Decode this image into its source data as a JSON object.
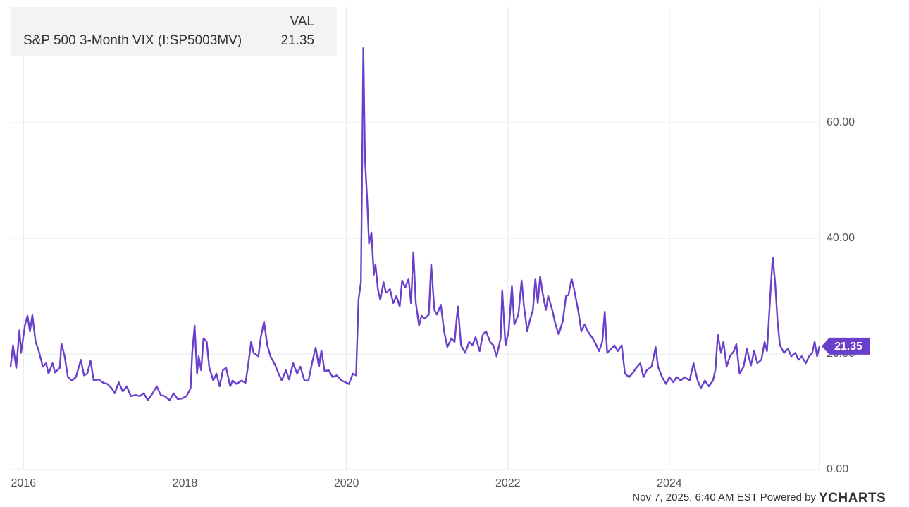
{
  "chart_data": {
    "type": "line",
    "legend_header": "VAL",
    "source": "Nov 7, 2025, 6:40 AM EST Powered by",
    "logo": "YCHARTS",
    "xlim": [
      2015.84,
      2025.86
    ],
    "xticks": [
      2016,
      2018,
      2020,
      2022,
      2024
    ],
    "ylim": [
      0,
      80
    ],
    "yticks": [
      {
        "value": 0,
        "label": "0.00"
      },
      {
        "value": 20,
        "label": "20.00"
      },
      {
        "value": 40,
        "label": "40.00"
      },
      {
        "value": 60,
        "label": "60.00"
      }
    ],
    "grid": true,
    "x": [
      2015.84,
      2015.87,
      2015.91,
      2015.95,
      2015.97,
      2016.02,
      2016.05,
      2016.08,
      2016.11,
      2016.15,
      2016.19,
      2016.24,
      2016.28,
      2016.31,
      2016.36,
      2016.39,
      2016.45,
      2016.47,
      2016.51,
      2016.55,
      2016.6,
      2016.65,
      2016.71,
      2016.75,
      2016.79,
      2016.83,
      2016.87,
      2016.93,
      2016.99,
      2017.04,
      2017.09,
      2017.13,
      2017.18,
      2017.23,
      2017.28,
      2017.33,
      2017.39,
      2017.44,
      2017.49,
      2017.54,
      2017.6,
      2017.65,
      2017.7,
      2017.75,
      2017.81,
      2017.86,
      2017.91,
      2017.96,
      2018.02,
      2018.07,
      2018.09,
      2018.12,
      2018.15,
      2018.17,
      2018.2,
      2018.23,
      2018.27,
      2018.3,
      2018.35,
      2018.39,
      2018.43,
      2018.47,
      2018.51,
      2018.56,
      2018.59,
      2018.64,
      2018.7,
      2018.75,
      2018.78,
      2018.82,
      2018.85,
      2018.91,
      2018.94,
      2018.98,
      2019.02,
      2019.06,
      2019.12,
      2019.16,
      2019.2,
      2019.25,
      2019.29,
      2019.34,
      2019.39,
      2019.43,
      2019.48,
      2019.53,
      2019.58,
      2019.62,
      2019.66,
      2019.69,
      2019.73,
      2019.78,
      2019.83,
      2019.88,
      2019.94,
      2019.99,
      2020.03,
      2020.08,
      2020.12,
      2020.15,
      2020.18,
      2020.21,
      2020.23,
      2020.26,
      2020.28,
      2020.31,
      2020.34,
      2020.36,
      2020.39,
      2020.42,
      2020.46,
      2020.49,
      2020.54,
      2020.58,
      2020.62,
      2020.66,
      2020.69,
      2020.73,
      2020.77,
      2020.8,
      2020.83,
      2020.86,
      2020.9,
      2020.93,
      2020.97,
      2021.02,
      2021.05,
      2021.09,
      2021.12,
      2021.17,
      2021.21,
      2021.25,
      2021.3,
      2021.34,
      2021.38,
      2021.42,
      2021.47,
      2021.52,
      2021.56,
      2021.6,
      2021.65,
      2021.69,
      2021.73,
      2021.78,
      2021.82,
      2021.86,
      2021.91,
      2021.93,
      2021.97,
      2022.01,
      2022.05,
      2022.08,
      2022.13,
      2022.17,
      2022.2,
      2022.24,
      2022.27,
      2022.31,
      2022.34,
      2022.37,
      2022.4,
      2022.43,
      2022.47,
      2022.5,
      2022.55,
      2022.59,
      2022.63,
      2022.68,
      2022.72,
      2022.75,
      2022.79,
      2022.82,
      2022.87,
      2022.91,
      2022.95,
      2022.99,
      2023.04,
      2023.09,
      2023.13,
      2023.17,
      2023.2,
      2023.23,
      2023.28,
      2023.32,
      2023.36,
      2023.41,
      2023.45,
      2023.5,
      2023.54,
      2023.59,
      2023.64,
      2023.68,
      2023.72,
      2023.78,
      2023.83,
      2023.86,
      2023.91,
      2023.96,
      2024.0,
      2024.05,
      2024.09,
      2024.14,
      2024.19,
      2024.25,
      2024.3,
      2024.35,
      2024.39,
      2024.44,
      2024.49,
      2024.54,
      2024.57,
      2024.6,
      2024.64,
      2024.67,
      2024.71,
      2024.75,
      2024.8,
      2024.83,
      2024.87,
      2024.92,
      2024.96,
      2025.01,
      2025.05,
      2025.09,
      2025.14,
      2025.18,
      2025.21,
      2025.25,
      2025.28,
      2025.31,
      2025.34,
      2025.37,
      2025.42,
      2025.47,
      2025.51,
      2025.56,
      2025.6,
      2025.64,
      2025.69,
      2025.73,
      2025.77,
      2025.8,
      2025.83,
      2025.86
    ],
    "series": [
      {
        "name": "S&P 500 3-Month VIX (I:SP5003MV)",
        "color": "#6a3fcc",
        "values": [
          17.8,
          21.5,
          17.6,
          24.1,
          20.2,
          25.1,
          26.6,
          23.9,
          26.7,
          22.1,
          20.5,
          17.8,
          18.4,
          16.6,
          18.4,
          16.8,
          17.6,
          21.8,
          19.6,
          16.0,
          15.4,
          16.0,
          19.0,
          16.3,
          16.6,
          18.8,
          15.4,
          15.6,
          15.0,
          14.8,
          14.1,
          13.2,
          15.1,
          13.5,
          14.4,
          12.7,
          12.9,
          12.7,
          13.2,
          12.0,
          13.2,
          14.4,
          12.9,
          12.7,
          12.0,
          13.2,
          12.2,
          12.3,
          12.7,
          14.1,
          20.2,
          24.9,
          16.6,
          19.6,
          17.2,
          22.7,
          22.1,
          17.8,
          15.4,
          16.6,
          14.4,
          17.2,
          17.6,
          14.4,
          15.4,
          14.8,
          15.4,
          15.0,
          17.8,
          22.1,
          20.2,
          19.6,
          22.9,
          25.6,
          21.5,
          19.6,
          18.0,
          16.6,
          15.4,
          17.2,
          15.6,
          18.4,
          16.6,
          17.8,
          15.4,
          15.4,
          18.8,
          21.1,
          17.8,
          20.6,
          17.0,
          17.2,
          16.0,
          16.3,
          15.4,
          15.1,
          14.8,
          16.6,
          16.3,
          29.4,
          32.4,
          72.9,
          53.8,
          45.9,
          39.1,
          41.0,
          33.7,
          35.5,
          31.2,
          29.4,
          32.4,
          30.6,
          31.2,
          28.8,
          30.0,
          28.2,
          32.7,
          31.5,
          33.0,
          28.8,
          37.6,
          28.8,
          24.9,
          26.6,
          26.1,
          26.8,
          35.5,
          27.6,
          26.8,
          28.5,
          23.9,
          21.2,
          22.7,
          22.1,
          28.2,
          21.5,
          20.2,
          22.1,
          21.5,
          22.9,
          20.5,
          23.4,
          23.9,
          22.1,
          21.5,
          19.6,
          22.7,
          31.0,
          21.5,
          23.9,
          31.8,
          25.1,
          26.8,
          32.7,
          28.2,
          23.9,
          25.7,
          27.6,
          33.0,
          28.8,
          33.4,
          30.6,
          27.6,
          30.0,
          27.6,
          25.1,
          23.4,
          25.7,
          30.0,
          30.2,
          33.0,
          31.2,
          27.6,
          23.9,
          25.1,
          23.9,
          22.9,
          21.7,
          20.5,
          22.1,
          27.3,
          20.2,
          20.9,
          21.5,
          20.5,
          21.5,
          16.6,
          16.0,
          16.6,
          17.6,
          18.4,
          16.0,
          17.2,
          17.8,
          21.2,
          17.8,
          16.0,
          14.8,
          16.0,
          15.1,
          16.0,
          15.4,
          16.0,
          15.4,
          18.4,
          15.4,
          14.1,
          15.4,
          14.4,
          15.4,
          17.2,
          23.3,
          20.2,
          22.1,
          17.8,
          19.6,
          20.5,
          21.7,
          16.6,
          17.8,
          20.9,
          18.0,
          20.5,
          18.4,
          19.0,
          22.1,
          20.5,
          30.0,
          36.7,
          32.4,
          25.7,
          21.5,
          20.2,
          20.9,
          19.6,
          20.2,
          19.0,
          19.6,
          18.4,
          19.6,
          20.2,
          22.1,
          19.6,
          21.35
        ]
      }
    ]
  }
}
